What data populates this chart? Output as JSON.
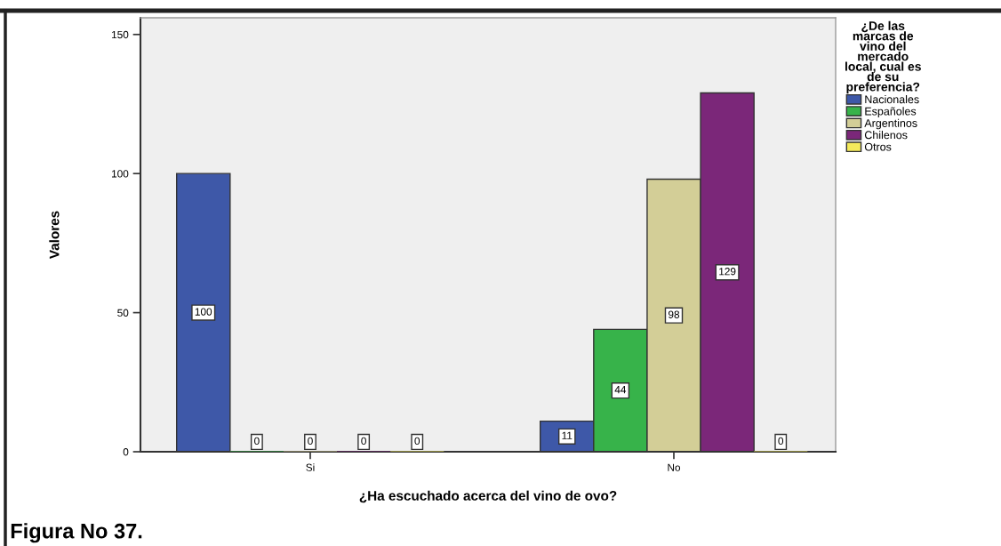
{
  "chart_data": {
    "type": "bar",
    "xlabel": "¿Ha escuchado acerca del vino de ovo?",
    "ylabel": "Valores",
    "legend_title": "¿De las marcas de vino del mercado local, cual es de su preferencia?",
    "annotations": [
      "Figura No 37."
    ],
    "categories": [
      "Si",
      "No"
    ],
    "series": [
      {
        "name": "Nacionales",
        "color": "#3e58a8",
        "values": [
          100,
          11
        ]
      },
      {
        "name": "Españoles",
        "color": "#37b34a",
        "values": [
          0,
          44
        ]
      },
      {
        "name": "Argentinos",
        "color": "#d3ce97",
        "values": [
          0,
          98
        ]
      },
      {
        "name": "Chilenos",
        "color": "#7b2779",
        "values": [
          0,
          129
        ]
      },
      {
        "name": "Otros",
        "color": "#f4ea5b",
        "values": [
          0,
          0
        ]
      }
    ],
    "ylim": [
      0,
      156
    ],
    "yticks": [
      0,
      50,
      100,
      150
    ],
    "data_labels": true,
    "legend": "right",
    "grid": false
  }
}
